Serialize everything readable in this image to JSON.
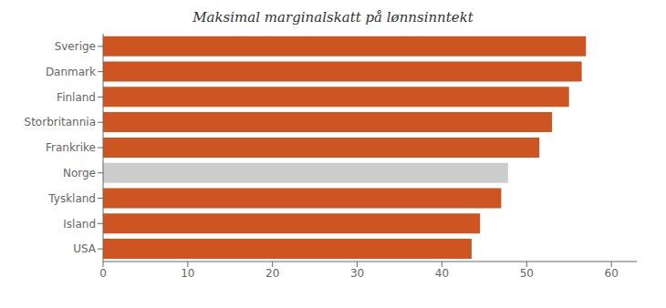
{
  "chart_data": {
    "type": "bar",
    "orientation": "horizontal",
    "title": "Maksimal marginalskatt på lønnsinntekt",
    "categories": [
      "Sverige",
      "Danmark",
      "Finland",
      "Storbritannia",
      "Frankrike",
      "Norge",
      "Tyskland",
      "Island",
      "USA"
    ],
    "values": [
      57.0,
      56.5,
      55.0,
      53.0,
      51.5,
      47.8,
      47.0,
      44.5,
      43.5
    ],
    "colors": [
      "#cc5522",
      "#cc5522",
      "#cc5522",
      "#cc5522",
      "#cc5522",
      "#cccccc",
      "#cc5522",
      "#cc5522",
      "#cc5522"
    ],
    "xlim": [
      0,
      63
    ],
    "xticks": [
      0,
      10,
      20,
      30,
      40,
      50,
      60
    ],
    "grid": false
  }
}
